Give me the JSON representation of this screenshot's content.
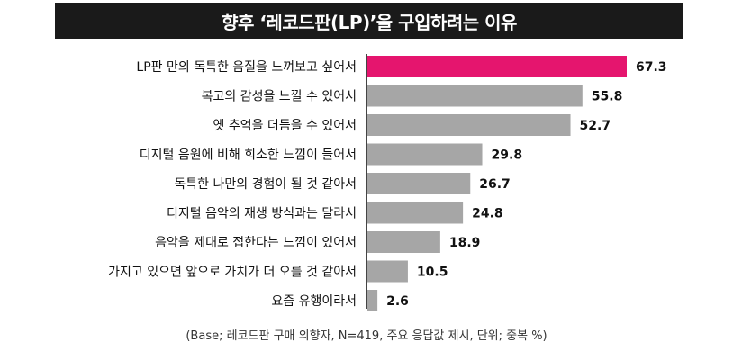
{
  "chart_data": {
    "type": "bar",
    "orientation": "horizontal",
    "title": "향후 ‘레코드판(LP)’을 구입하려는 이유",
    "categories": [
      "LP판 만의 독특한 음질을 느껴보고 싶어서",
      "복고의 감성을 느낄 수 있어서",
      "옛 추억을 더듬을 수 있어서",
      "디지털 음원에 비해 희소한 느낌이 들어서",
      "독특한 나만의 경험이 될 것 같아서",
      "디지털 음악의 재생 방식과는 달라서",
      "음악을 제대로 접한다는 느낌이 있어서",
      "가지고 있으면 앞으로 가치가 더 오를 것 같아서",
      "요즘 유행이라서"
    ],
    "values": [
      67.3,
      55.8,
      52.7,
      29.8,
      26.7,
      24.8,
      18.9,
      10.5,
      2.6
    ],
    "value_labels": [
      "67.3",
      "55.8",
      "52.7",
      "29.8",
      "26.7",
      "24.8",
      "18.9",
      "10.5",
      "2.6"
    ],
    "highlight_color": "#e5156e",
    "bar_color": "#a6a6a6",
    "grid": false,
    "legend": "none",
    "note": "(Base; 레코드판 구매 의향자, N=419, 주요 응답값 제시, 단위; 중복 %)"
  }
}
